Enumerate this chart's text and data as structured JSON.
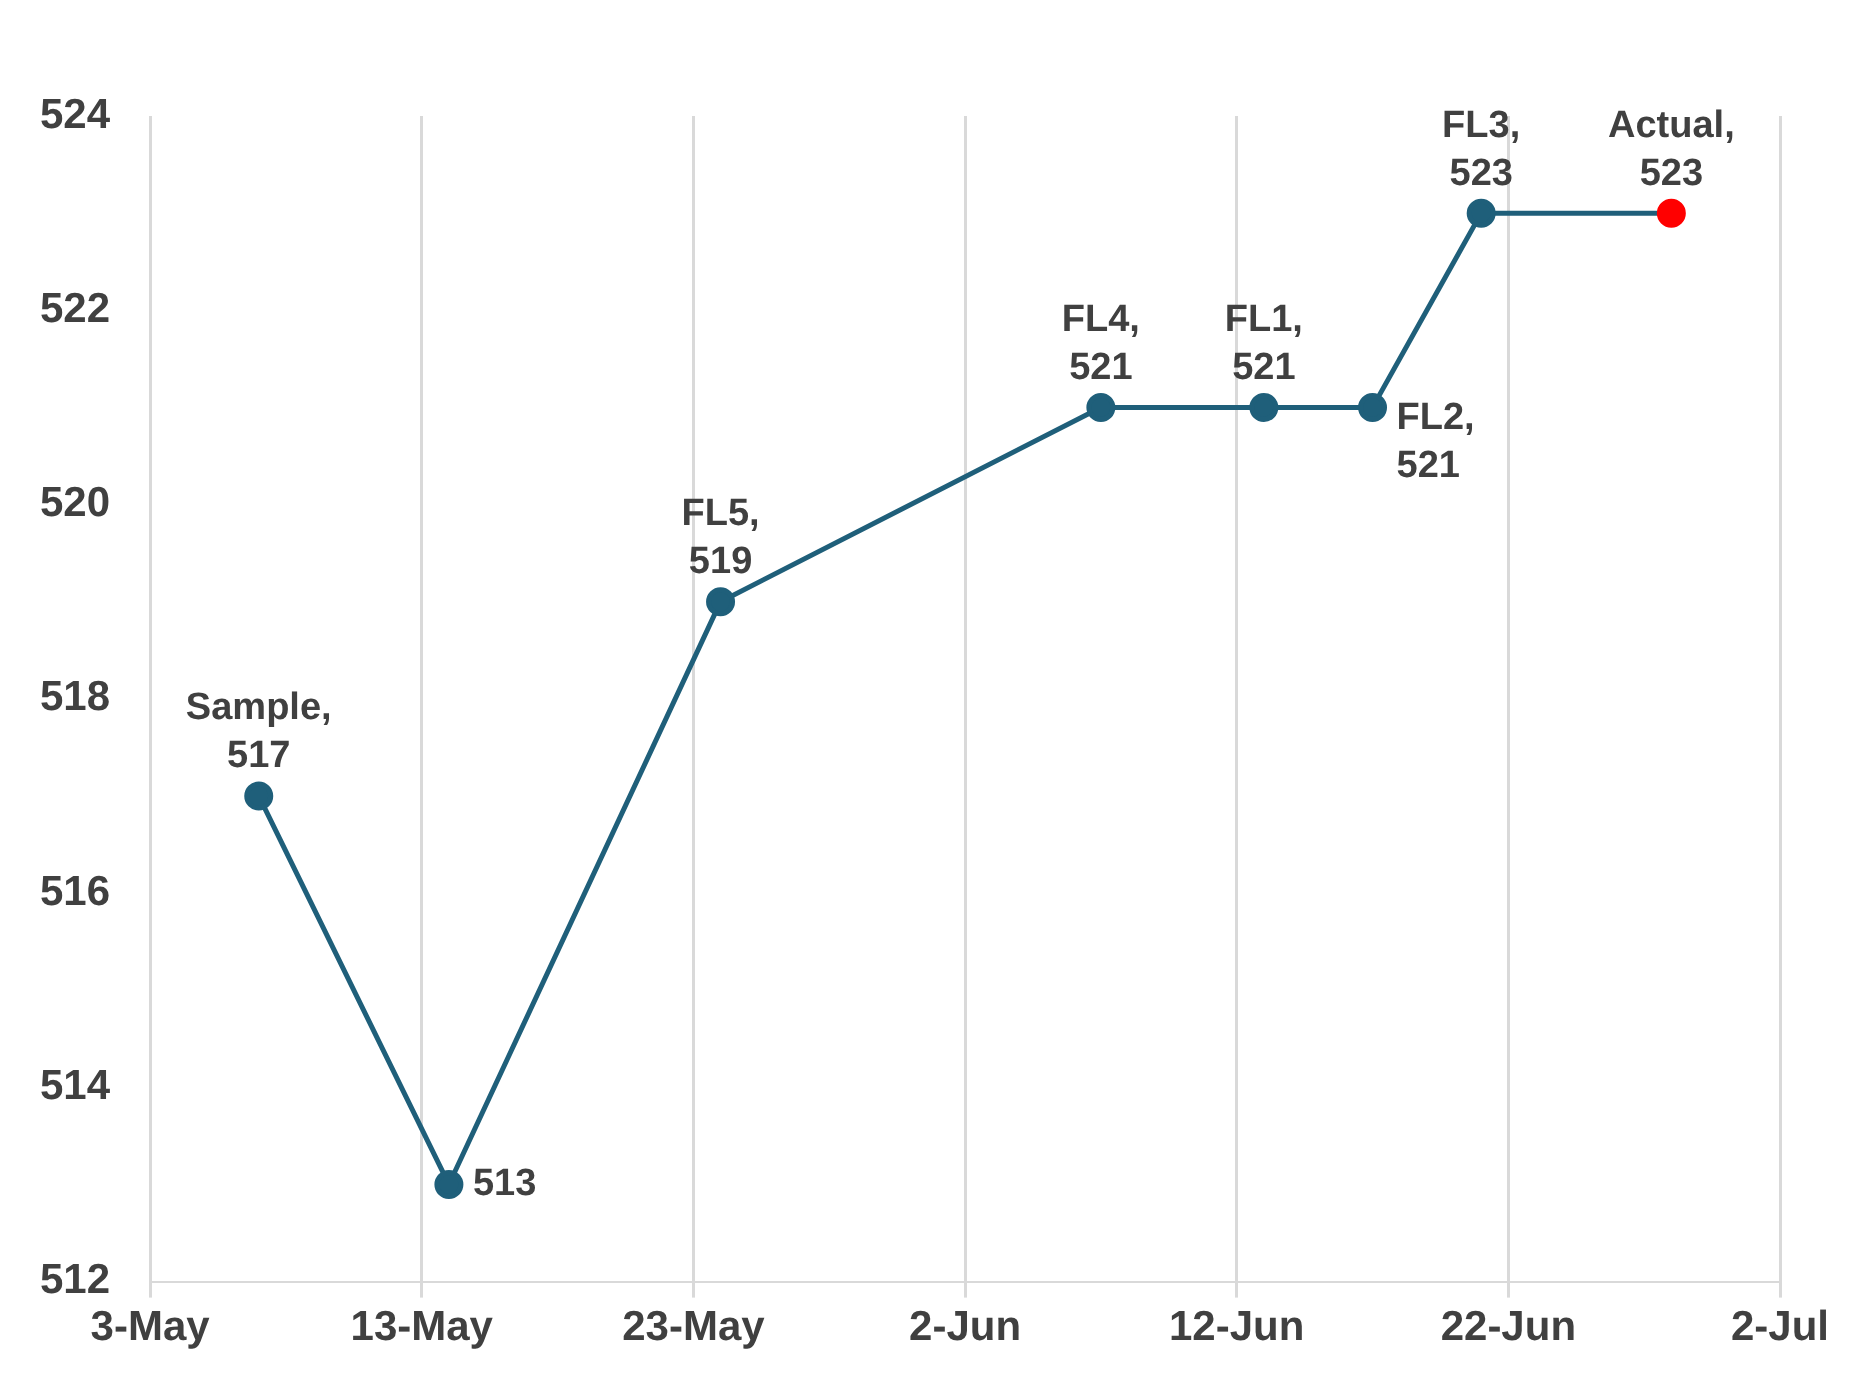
{
  "chart_data": {
    "type": "line",
    "x": [
      "--05-07",
      "--05-14",
      "--05-24",
      "--06-07",
      "--06-13",
      "--06-17",
      "--06-21",
      "--06-28"
    ],
    "series": [
      {
        "color": "#1f5f7a",
        "colors": [
          "#1f5f7a",
          "#1f5f7a",
          "#1f5f7a",
          "#1f5f7a",
          "#1f5f7a",
          "#1f5f7a",
          "#1f5f7a",
          "#ff0000"
        ],
        "values": [
          517,
          513,
          519,
          521,
          521,
          521,
          523,
          523
        ],
        "value_labels": [
          "Sample, 517",
          "513",
          "FL5, 519",
          "FL4, 521",
          "FL1, 521",
          "FL2, 521",
          "FL3, 523",
          "Actual, 523"
        ]
      }
    ],
    "xlim": [
      "--05-03",
      "--07-02"
    ],
    "xticks": [
      {
        "value": "--05-03",
        "label": "3-May"
      },
      {
        "value": "--05-13",
        "label": "13-May"
      },
      {
        "value": "--05-23",
        "label": "23-May"
      },
      {
        "value": "--06-02",
        "label": "2-Jun"
      },
      {
        "value": "--06-12",
        "label": "12-Jun"
      },
      {
        "value": "--06-22",
        "label": "22-Jun"
      },
      {
        "value": "--07-02",
        "label": "2-Jul"
      }
    ],
    "ylim": [
      512,
      524
    ],
    "yticks": [
      512,
      514,
      516,
      518,
      520,
      522,
      524
    ],
    "grid": "x",
    "marker": "circle",
    "line_style": "solid",
    "legend": false
  }
}
